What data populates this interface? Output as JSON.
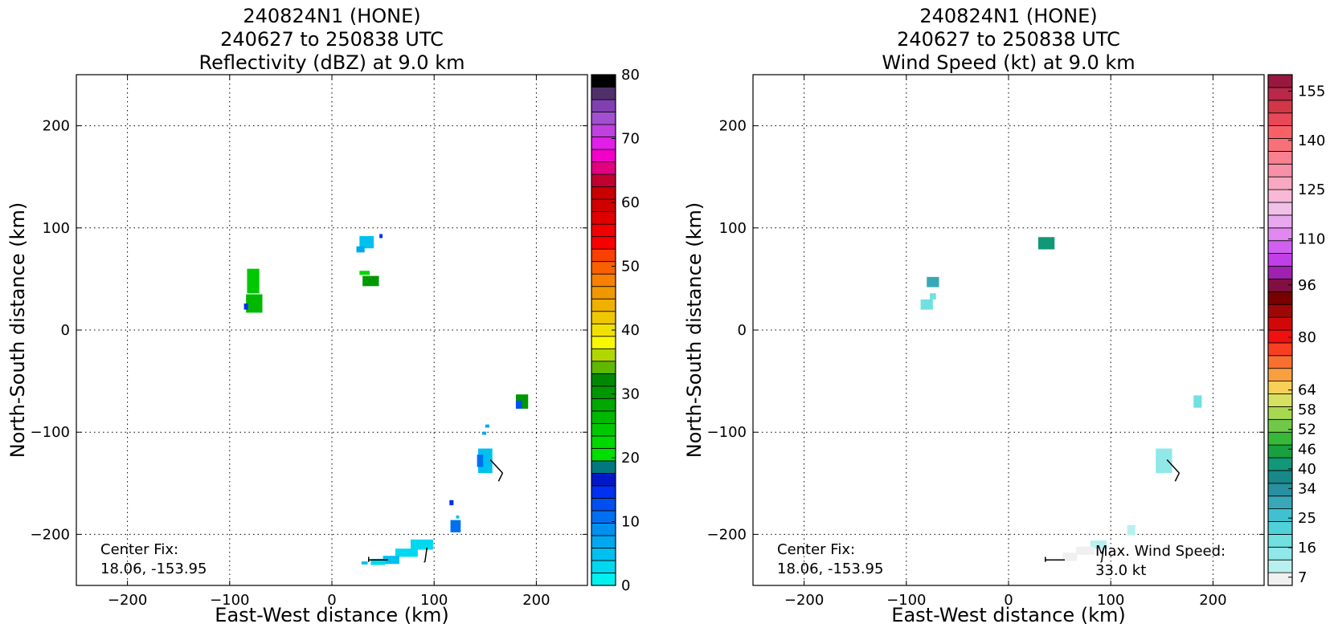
{
  "chart_data": [
    {
      "type": "heatmap",
      "title_lines": [
        "240824N1 (HONE)",
        "240627 to 250838 UTC",
        "Reflectivity (dBZ) at 9.0 km"
      ],
      "xlabel": "East-West distance (km)",
      "ylabel": "North-South distance (km)",
      "xlim": [
        -250,
        250
      ],
      "ylim": [
        -250,
        250
      ],
      "xticks": [
        -200,
        -100,
        0,
        100,
        200
      ],
      "yticks": [
        -200,
        -100,
        0,
        100,
        200
      ],
      "grid": true,
      "annotation_lines": [
        "Center Fix:",
        "18.06, -153.95"
      ],
      "colorbar": {
        "min": 0,
        "max": 80,
        "ticks": [
          0,
          10,
          20,
          30,
          40,
          50,
          60,
          70,
          80
        ],
        "colors": [
          "#00f0f0",
          "#00d8f0",
          "#00c0f0",
          "#00a8f0",
          "#0090f0",
          "#0070f0",
          "#0050f0",
          "#0030f0",
          "#0018c8",
          "#007880",
          "#00e000",
          "#00d800",
          "#00c800",
          "#00b800",
          "#00a800",
          "#009800",
          "#008800",
          "#60b800",
          "#b0d800",
          "#f8f800",
          "#f0e000",
          "#f0c800",
          "#f0b000",
          "#f09800",
          "#f88000",
          "#f86000",
          "#f84000",
          "#f80000",
          "#f00000",
          "#e00000",
          "#d00000",
          "#c80000",
          "#c00030",
          "#e00080",
          "#f000c8",
          "#e020e8",
          "#c040e0",
          "#a050d0",
          "#8040b0",
          "#50306a",
          "#000000"
        ]
      },
      "cells": [
        {
          "x": -77,
          "y": 48,
          "w": 12,
          "h": 24,
          "color": "#00c800"
        },
        {
          "x": -76,
          "y": 26,
          "w": 16,
          "h": 18,
          "color": "#00b800"
        },
        {
          "x": -84,
          "y": 23,
          "w": 4,
          "h": 6,
          "color": "#0030f0"
        },
        {
          "x": 34,
          "y": 86,
          "w": 14,
          "h": 12,
          "color": "#00c0f0"
        },
        {
          "x": 28,
          "y": 79,
          "w": 8,
          "h": 6,
          "color": "#00a8f0"
        },
        {
          "x": 48,
          "y": 92,
          "w": 3,
          "h": 4,
          "color": "#0030f0"
        },
        {
          "x": 38,
          "y": 48,
          "w": 16,
          "h": 10,
          "color": "#009800"
        },
        {
          "x": 32,
          "y": 56,
          "w": 10,
          "h": 4,
          "color": "#00d800"
        },
        {
          "x": 186,
          "y": -70,
          "w": 12,
          "h": 14,
          "color": "#009800"
        },
        {
          "x": 183,
          "y": -73,
          "w": 6,
          "h": 8,
          "color": "#0050f0"
        },
        {
          "x": 150,
          "y": -128,
          "w": 14,
          "h": 24,
          "color": "#00c0f0"
        },
        {
          "x": 145,
          "y": -128,
          "w": 6,
          "h": 12,
          "color": "#0070f0"
        },
        {
          "x": 152,
          "y": -94,
          "w": 4,
          "h": 3,
          "color": "#00a8f0"
        },
        {
          "x": 149,
          "y": -101,
          "w": 4,
          "h": 3,
          "color": "#00a8f0"
        },
        {
          "x": 121,
          "y": -192,
          "w": 10,
          "h": 12,
          "color": "#0070f0"
        },
        {
          "x": 117,
          "y": -169,
          "w": 4,
          "h": 5,
          "color": "#0030f0"
        },
        {
          "x": 123,
          "y": -183,
          "w": 3,
          "h": 3,
          "color": "#00c0f0"
        },
        {
          "x": 88,
          "y": -210,
          "w": 22,
          "h": 10,
          "color": "#00d8f0"
        },
        {
          "x": 73,
          "y": -218,
          "w": 22,
          "h": 8,
          "color": "#00d8f0"
        },
        {
          "x": 58,
          "y": -225,
          "w": 16,
          "h": 8,
          "color": "#00c0f0"
        },
        {
          "x": 45,
          "y": -227,
          "w": 14,
          "h": 6,
          "color": "#00d8f0"
        },
        {
          "x": 32,
          "y": -228,
          "w": 6,
          "h": 3,
          "color": "#00c0f0"
        }
      ],
      "barbs": [
        {
          "x": 155,
          "y": -127,
          "x2": 167,
          "y2": -140,
          "flag_x": 163,
          "flag_y": -148
        },
        {
          "x": 93,
          "y": -213,
          "x2": 91,
          "y2": -227,
          "flag_x": 90,
          "flag_y": -227
        }
      ],
      "barb_lines": [
        {
          "x1": 36,
          "y1": -225,
          "x2": 55,
          "y2": -225
        },
        {
          "x1": 36,
          "y1": -222,
          "x2": 36,
          "y2": -227
        }
      ]
    },
    {
      "type": "heatmap",
      "title_lines": [
        "240824N1 (HONE)",
        "240627 to 250838 UTC",
        "Wind Speed (kt) at 9.0 km"
      ],
      "xlabel": "East-West distance (km)",
      "ylabel": "North-South distance (km)",
      "xlim": [
        -250,
        250
      ],
      "ylim": [
        -250,
        250
      ],
      "xticks": [
        -200,
        -100,
        0,
        100,
        200
      ],
      "yticks": [
        -200,
        -100,
        0,
        100,
        200
      ],
      "grid": true,
      "annotation_lines": [
        "Center Fix:",
        "18.06, -153.95"
      ],
      "annotation2_lines": [
        "Max. Wind Speed:",
        "33.0 kt"
      ],
      "colorbar": {
        "min": 4.5,
        "max": 160,
        "ticks": [
          7,
          16,
          25,
          34,
          40,
          46,
          52,
          58,
          64,
          80,
          96,
          110,
          125,
          140,
          155
        ],
        "colors": [
          "#f0f0f0",
          "#b8f0f0",
          "#90e8e8",
          "#70e0e0",
          "#50d0d8",
          "#40c0d0",
          "#38a8b8",
          "#2890a0",
          "#188888",
          "#109878",
          "#18a040",
          "#38b838",
          "#70c848",
          "#a8d850",
          "#d8e060",
          "#f8d058",
          "#f8a040",
          "#f87030",
          "#f84020",
          "#f01010",
          "#d00808",
          "#a00808",
          "#780000",
          "#801040",
          "#a020b0",
          "#c040e8",
          "#d060f0",
          "#e088f0",
          "#e8a8f0",
          "#f0c0e8",
          "#f8b8d8",
          "#f8a8c0",
          "#f890a8",
          "#f88090",
          "#f87078",
          "#f86068",
          "#e84858",
          "#d03848",
          "#b82848",
          "#981840"
        ]
      },
      "cells": [
        {
          "x": 37,
          "y": 85,
          "w": 16,
          "h": 12,
          "color": "#109878"
        },
        {
          "x": -74,
          "y": 47,
          "w": 12,
          "h": 10,
          "color": "#38a8b8"
        },
        {
          "x": -80,
          "y": 25,
          "w": 12,
          "h": 10,
          "color": "#70e0e0"
        },
        {
          "x": -74,
          "y": 33,
          "w": 6,
          "h": 6,
          "color": "#70e0e0"
        },
        {
          "x": 185,
          "y": -70,
          "w": 8,
          "h": 12,
          "color": "#70e0e0"
        },
        {
          "x": 152,
          "y": -128,
          "w": 16,
          "h": 24,
          "color": "#90e8e8"
        },
        {
          "x": 120,
          "y": -196,
          "w": 8,
          "h": 10,
          "color": "#b8f0f0"
        },
        {
          "x": 88,
          "y": -210,
          "w": 16,
          "h": 8,
          "color": "#b8f0f0"
        },
        {
          "x": 75,
          "y": -216,
          "w": 18,
          "h": 8,
          "color": "#f0f0f0"
        },
        {
          "x": 60,
          "y": -222,
          "w": 14,
          "h": 8,
          "color": "#f0f0f0"
        }
      ],
      "barbs": [
        {
          "x": 155,
          "y": -127,
          "x2": 167,
          "y2": -140,
          "flag_x": 163,
          "flag_y": -148
        },
        {
          "x": 93,
          "y": -213,
          "x2": 91,
          "y2": -227,
          "flag_x": 90,
          "flag_y": -227
        }
      ],
      "barb_lines": [
        {
          "x1": 36,
          "y1": -225,
          "x2": 55,
          "y2": -225
        },
        {
          "x1": 36,
          "y1": -222,
          "x2": 36,
          "y2": -227
        }
      ]
    }
  ]
}
